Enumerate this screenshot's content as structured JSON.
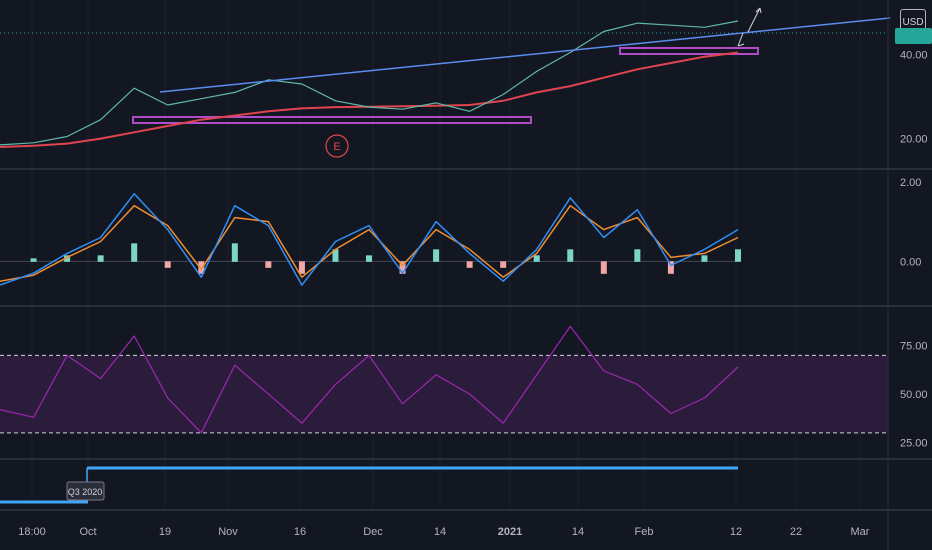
{
  "currency_badge": "USD",
  "colors": {
    "background": "#131722",
    "grid": "#1e222d",
    "trendline": "#5b8def",
    "ma": "#e0454f",
    "zone": "#b04cc7",
    "macd": "#2f8ff7",
    "signal": "#f08d2f",
    "hist_up": "#7bd6c8",
    "hist_down": "#f3a6a6",
    "rsi": "#9c27b0",
    "rsi_band": "#2c1c3c",
    "quarter_line": "#42a5f5",
    "price_tag": "#26a69a"
  },
  "earnings_marker": "E",
  "quarter_label": "Q3 2020",
  "x_axis": {
    "ticks": [
      "18:00",
      "Oct",
      "19",
      "Nov",
      "16",
      "Dec",
      "14",
      "2021",
      "14",
      "Feb",
      "12",
      "22",
      "Mar"
    ]
  },
  "chart_data": [
    {
      "type": "line",
      "name": "price",
      "y_ticks": [
        "40.00",
        "20.00"
      ],
      "ylim": [
        13,
        53
      ],
      "x": [
        "Sep 24",
        "Sep 30",
        "Oct 7",
        "Oct 14",
        "Oct 19",
        "Oct 26",
        "Nov 2",
        "Nov 9",
        "Nov 16",
        "Nov 23",
        "Nov 30",
        "Dec 7",
        "Dec 14",
        "Dec 21",
        "Dec 28",
        "Jan 4",
        "Jan 11",
        "Jan 14",
        "Jan 19",
        "Jan 25",
        "Feb 1",
        "Feb 8",
        "Feb 12"
      ],
      "series": [
        {
          "values": [
            18.5,
            19.0,
            20.5,
            24.5,
            32.0,
            28.0,
            29.5,
            31.0,
            34.0,
            33.0,
            29.0,
            27.5,
            27.0,
            28.5,
            26.5,
            30.5,
            36.0,
            40.5,
            45.5,
            47.5,
            47.0,
            46.5,
            48.0
          ]
        },
        {
          "values": [
            18.0,
            18.3,
            18.8,
            20.0,
            21.5,
            23.0,
            24.5,
            25.5,
            26.5,
            27.2,
            27.5,
            27.6,
            27.7,
            27.8,
            28.0,
            29.0,
            31.0,
            32.5,
            34.5,
            36.5,
            38.0,
            39.5,
            40.5
          ]
        }
      ]
    },
    {
      "type": "line",
      "name": "oscillator",
      "y_ticks": [
        "2.00",
        "0.00"
      ],
      "ylim": [
        -1.1,
        2.3
      ],
      "series": [
        {
          "values": [
            -0.6,
            -0.3,
            0.2,
            0.6,
            1.7,
            0.8,
            -0.4,
            1.4,
            0.9,
            -0.6,
            0.5,
            0.9,
            -0.3,
            1.0,
            0.2,
            -0.5,
            0.3,
            1.6,
            0.6,
            1.3,
            -0.1,
            0.3,
            0.8
          ]
        },
        {
          "values": [
            -0.5,
            -0.35,
            0.1,
            0.5,
            1.4,
            0.9,
            -0.2,
            1.1,
            1.0,
            -0.4,
            0.3,
            0.8,
            -0.1,
            0.8,
            0.3,
            -0.4,
            0.2,
            1.4,
            0.8,
            1.1,
            0.1,
            0.2,
            0.6
          ]
        }
      ]
    },
    {
      "type": "line",
      "name": "rsi",
      "y_ticks": [
        "75.00",
        "50.00",
        "25.00"
      ],
      "ylim": [
        17,
        95
      ],
      "levels": [
        70,
        30
      ],
      "series": [
        {
          "values": [
            42,
            38,
            70,
            58,
            80,
            48,
            30,
            65,
            50,
            35,
            55,
            70,
            45,
            60,
            50,
            35,
            60,
            85,
            62,
            55,
            40,
            48,
            64
          ]
        }
      ]
    }
  ]
}
